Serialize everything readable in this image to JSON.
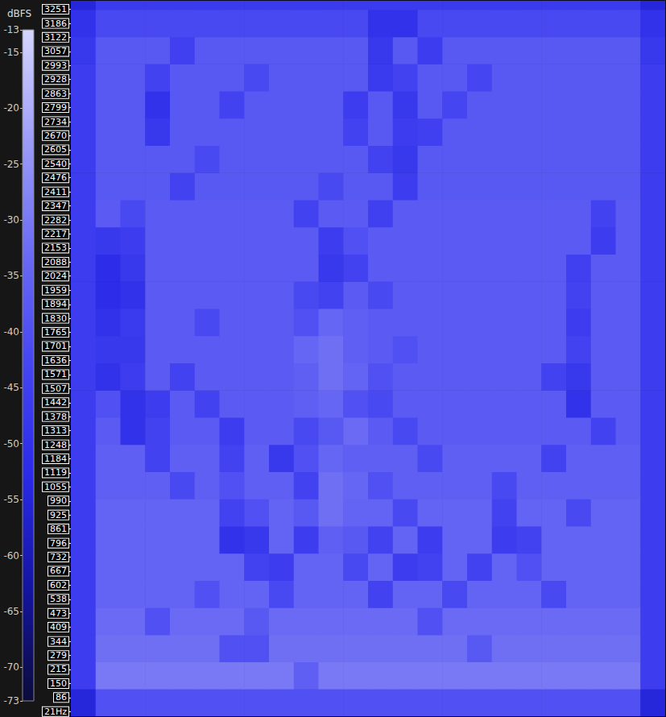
{
  "chart_data": {
    "type": "heatmap",
    "xlim": [
      0,
      24
    ],
    "ylim": [
      0,
      3290
    ],
    "yticks": [
      {
        "value": 21,
        "label": "21Hz"
      },
      86,
      150,
      215,
      279,
      344,
      409,
      473,
      538,
      602,
      667,
      732,
      796,
      861,
      925,
      990,
      1055,
      1119,
      1184,
      1248,
      1313,
      1378,
      1442,
      1507,
      1571,
      1636,
      1701,
      1765,
      1830,
      1894,
      1959,
      2024,
      2088,
      2153,
      2217,
      2282,
      2347,
      2411,
      2476,
      2540,
      2605,
      2670,
      2734,
      2799,
      2863,
      2928,
      2993,
      3057,
      3122,
      3186,
      3251
    ],
    "tick_labels": "y",
    "grid": false,
    "y_edges": [
      0,
      125,
      250,
      375,
      500,
      625,
      750,
      875,
      1000,
      1125,
      1250,
      1375,
      1500,
      1625,
      1750,
      1875,
      2000,
      2125,
      2250,
      2375,
      2500,
      2625,
      2750,
      2875,
      3000,
      3125,
      3250,
      3290
    ],
    "cells": [
      [
        -55,
        -40,
        -40,
        -40,
        -40,
        -40,
        -40,
        -40,
        -40,
        -40,
        -40,
        -40,
        -40,
        -40,
        -40,
        -40,
        -40,
        -40,
        -40,
        -40,
        -40,
        -40,
        -40,
        -55
      ],
      [
        -46,
        -30,
        -30,
        -30,
        -30,
        -30,
        -30,
        -30,
        -30,
        -36,
        -30,
        -30,
        -30,
        -30,
        -30,
        -30,
        -30,
        -30,
        -30,
        -30,
        -30,
        -30,
        -30,
        -46
      ],
      [
        -46,
        -32,
        -32,
        -32,
        -32,
        -32,
        -40,
        -40,
        -32,
        -32,
        -32,
        -32,
        -32,
        -32,
        -32,
        -32,
        -38,
        -32,
        -32,
        -32,
        -32,
        -32,
        -32,
        -46
      ],
      [
        -46,
        -33,
        -33,
        -40,
        -33,
        -33,
        -33,
        -38,
        -33,
        -33,
        -33,
        -33,
        -33,
        -33,
        -40,
        -33,
        -33,
        -33,
        -33,
        -33,
        -33,
        -33,
        -33,
        -46
      ],
      [
        -46,
        -35,
        -35,
        -35,
        -35,
        -40,
        -35,
        -35,
        -42,
        -35,
        -35,
        -35,
        -44,
        -35,
        -35,
        -42,
        -35,
        -35,
        -35,
        -42,
        -35,
        -35,
        -35,
        -46
      ],
      [
        -46,
        -35,
        -35,
        -35,
        -35,
        -35,
        -35,
        -44,
        -46,
        -35,
        -35,
        -42,
        -35,
        -46,
        -44,
        -35,
        -44,
        -35,
        -40,
        -35,
        -35,
        -35,
        -35,
        -46
      ],
      [
        -46,
        -35,
        -35,
        -35,
        -35,
        -35,
        -50,
        -48,
        -35,
        -46,
        -36,
        -38,
        -44,
        -35,
        -46,
        -35,
        -35,
        -46,
        -44,
        -35,
        -35,
        -35,
        -35,
        -46
      ],
      [
        -46,
        -35,
        -35,
        -35,
        -35,
        -35,
        -44,
        -40,
        -35,
        -38,
        -32,
        -35,
        -35,
        -42,
        -35,
        -35,
        -35,
        -44,
        -35,
        -35,
        -42,
        -35,
        -35,
        -46
      ],
      [
        -46,
        -36,
        -36,
        -36,
        -42,
        -36,
        -40,
        -36,
        -36,
        -44,
        -32,
        -34,
        -40,
        -36,
        -36,
        -36,
        -36,
        -42,
        -36,
        -36,
        -36,
        -36,
        -36,
        -46
      ],
      [
        -46,
        -36,
        -36,
        -44,
        -36,
        -36,
        -44,
        -36,
        -48,
        -40,
        -34,
        -36,
        -36,
        -36,
        -42,
        -36,
        -36,
        -36,
        -36,
        -44,
        -36,
        -36,
        -36,
        -46
      ],
      [
        -46,
        -37,
        -50,
        -44,
        -37,
        -37,
        -46,
        -37,
        -37,
        -42,
        -38,
        -33,
        -37,
        -42,
        -37,
        -37,
        -37,
        -37,
        -37,
        -37,
        -37,
        -44,
        -37,
        -46
      ],
      [
        -46,
        -40,
        -50,
        -46,
        -37,
        -44,
        -37,
        -37,
        -37,
        -36,
        -34,
        -40,
        -42,
        -37,
        -37,
        -37,
        -37,
        -37,
        -37,
        -37,
        -50,
        -37,
        -37,
        -46
      ],
      [
        -46,
        -50,
        -46,
        -37,
        -44,
        -37,
        -37,
        -37,
        -37,
        -36,
        -32,
        -35,
        -40,
        -37,
        -37,
        -37,
        -37,
        -37,
        -37,
        -44,
        -48,
        -37,
        -37,
        -46
      ],
      [
        -46,
        -48,
        -48,
        -37,
        -37,
        -37,
        -37,
        -37,
        -37,
        -34,
        -32,
        -36,
        -37,
        -40,
        -37,
        -37,
        -37,
        -37,
        -37,
        -37,
        -44,
        -37,
        -37,
        -46
      ],
      [
        -46,
        -50,
        -47,
        -37,
        -37,
        -42,
        -37,
        -37,
        -37,
        -40,
        -34,
        -36,
        -37,
        -37,
        -37,
        -37,
        -37,
        -37,
        -37,
        -37,
        -46,
        -37,
        -37,
        -46
      ],
      [
        -46,
        -52,
        -50,
        -37,
        -37,
        -37,
        -37,
        -37,
        -37,
        -42,
        -44,
        -37,
        -42,
        -37,
        -37,
        -37,
        -37,
        -37,
        -37,
        -37,
        -44,
        -37,
        -37,
        -46
      ],
      [
        -46,
        -52,
        -48,
        -37,
        -37,
        -37,
        -37,
        -37,
        -37,
        -37,
        -48,
        -44,
        -37,
        -37,
        -37,
        -37,
        -37,
        -37,
        -37,
        -37,
        -45,
        -37,
        -37,
        -46
      ],
      [
        -46,
        -48,
        -46,
        -37,
        -37,
        -37,
        -37,
        -37,
        -37,
        -37,
        -46,
        -40,
        -37,
        -37,
        -37,
        -37,
        -37,
        -37,
        -37,
        -37,
        -37,
        -46,
        -37,
        -46
      ],
      [
        -46,
        -37,
        -42,
        -37,
        -37,
        -37,
        -37,
        -37,
        -37,
        -44,
        -37,
        -37,
        -45,
        -37,
        -37,
        -37,
        -37,
        -37,
        -37,
        -37,
        -37,
        -44,
        -37,
        -46
      ],
      [
        -46,
        -38,
        -38,
        -38,
        -44,
        -38,
        -38,
        -38,
        -38,
        -38,
        -42,
        -38,
        -38,
        -46,
        -38,
        -38,
        -38,
        -38,
        -38,
        -38,
        -38,
        -38,
        -38,
        -46
      ],
      [
        -46,
        -38,
        -38,
        -38,
        -38,
        -42,
        -38,
        -38,
        -38,
        -38,
        -38,
        -38,
        -44,
        -48,
        -38,
        -38,
        -38,
        -38,
        -38,
        -38,
        -38,
        -38,
        -38,
        -46
      ],
      [
        -46,
        -38,
        -38,
        -48,
        -38,
        -38,
        -38,
        -38,
        -38,
        -38,
        -38,
        -44,
        -38,
        -46,
        -45,
        -38,
        -38,
        -38,
        -38,
        -38,
        -38,
        -38,
        -38,
        -46
      ],
      [
        -46,
        -38,
        -38,
        -50,
        -38,
        -38,
        -44,
        -38,
        -38,
        -38,
        -38,
        -46,
        -38,
        -48,
        -38,
        -43,
        -38,
        -38,
        -38,
        -38,
        -38,
        -38,
        -38,
        -46
      ],
      [
        -46,
        -38,
        -38,
        -44,
        -38,
        -38,
        -38,
        -42,
        -38,
        -38,
        -38,
        -38,
        -47,
        -44,
        -38,
        -38,
        -43,
        -38,
        -38,
        -38,
        -38,
        -38,
        -38,
        -46
      ],
      [
        -48,
        -38,
        -38,
        -38,
        -45,
        -38,
        -38,
        -38,
        -38,
        -38,
        -38,
        -38,
        -48,
        -38,
        -46,
        -38,
        -38,
        -38,
        -38,
        -38,
        -38,
        -38,
        -38,
        -48
      ],
      [
        -50,
        -42,
        -42,
        -42,
        -42,
        -42,
        -42,
        -42,
        -42,
        -42,
        -42,
        -42,
        -50,
        -50,
        -42,
        -42,
        -42,
        -42,
        -42,
        -42,
        -42,
        -42,
        -42,
        -50
      ],
      [
        -55,
        -47,
        -47,
        -47,
        -47,
        -47,
        -47,
        -47,
        -47,
        -47,
        -47,
        -47,
        -47,
        -47,
        -47,
        -47,
        -47,
        -47,
        -47,
        -47,
        -47,
        -47,
        -47,
        -55
      ]
    ],
    "colorbar": {
      "label": "dBFS",
      "range": [
        -73,
        -13
      ],
      "ticks": [
        -13,
        -15,
        -20,
        -25,
        -30,
        -35,
        -40,
        -45,
        -50,
        -55,
        -60,
        -65,
        -70,
        -73
      ]
    }
  }
}
